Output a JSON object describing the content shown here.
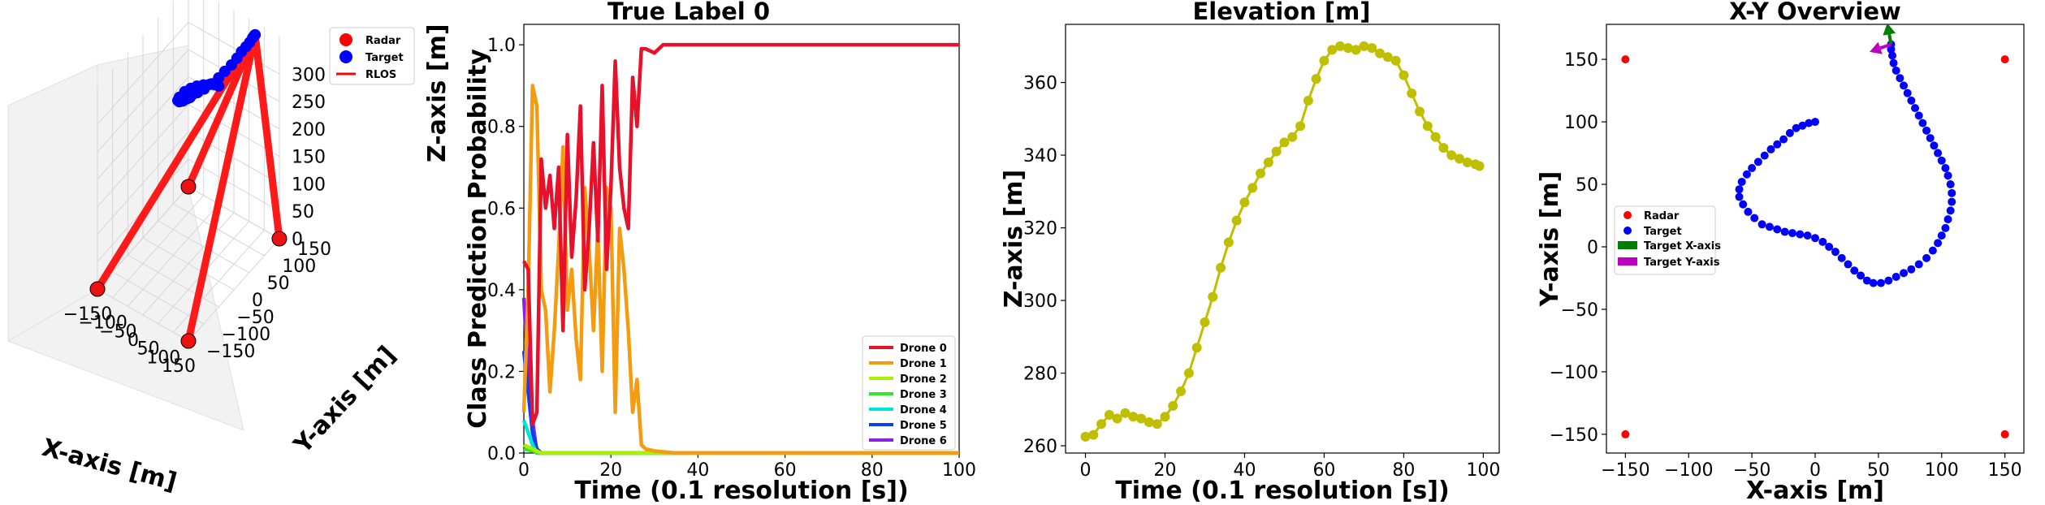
{
  "chart_data": [
    {
      "type": "scatter3d",
      "title": "",
      "xlabel": "X-axis [m]",
      "ylabel": "Y-axis [m]",
      "zlabel": "Z-axis [m]",
      "xlim": [
        -150,
        150
      ],
      "ylim": [
        -150,
        150
      ],
      "zlim": [
        0,
        370
      ],
      "xticks": [
        -150,
        -100,
        -50,
        0,
        50,
        100,
        150
      ],
      "yticks": [
        -150,
        -100,
        -50,
        0,
        50,
        100,
        150
      ],
      "zticks": [
        0,
        50,
        100,
        150,
        200,
        250,
        300
      ],
      "legend": [
        {
          "label": "Radar",
          "color": "#ff0000",
          "marker": "circle"
        },
        {
          "label": "Target",
          "color": "#0000ff",
          "marker": "circle"
        },
        {
          "label": "RLOS",
          "color": "#ff0000",
          "marker": "line"
        }
      ],
      "radars": [
        [
          -150,
          -150,
          0
        ],
        [
          150,
          -150,
          0
        ],
        [
          -150,
          150,
          0
        ],
        [
          150,
          150,
          0
        ]
      ],
      "los_target": [
        60,
        160,
        337
      ],
      "target_path": [
        [
          0,
          100,
          262
        ],
        [
          -10,
          97,
          263
        ],
        [
          -20,
          90,
          265
        ],
        [
          -30,
          80,
          267
        ],
        [
          -40,
          68,
          269
        ],
        [
          -50,
          58,
          268
        ],
        [
          -58,
          46,
          267
        ],
        [
          -60,
          30,
          266
        ],
        [
          -55,
          20,
          268
        ],
        [
          -45,
          15,
          272
        ],
        [
          -30,
          12,
          280
        ],
        [
          -15,
          10,
          290
        ],
        [
          0,
          5,
          300
        ],
        [
          10,
          -5,
          310
        ],
        [
          20,
          -15,
          320
        ],
        [
          30,
          -25,
          330
        ],
        [
          40,
          -28,
          338
        ],
        [
          55,
          -25,
          345
        ],
        [
          70,
          -18,
          352
        ],
        [
          85,
          -8,
          360
        ],
        [
          95,
          5,
          366
        ],
        [
          100,
          20,
          370
        ],
        [
          102,
          40,
          370
        ],
        [
          100,
          60,
          369
        ],
        [
          95,
          80,
          367
        ],
        [
          90,
          100,
          362
        ],
        [
          82,
          120,
          355
        ],
        [
          72,
          140,
          348
        ],
        [
          63,
          155,
          340
        ],
        [
          60,
          160,
          337
        ]
      ]
    },
    {
      "type": "line",
      "title": "True Label 0",
      "xlabel": "Time (0.1 resolution [s])",
      "ylabel": "Class Prediction Probability",
      "xlim": [
        0,
        100
      ],
      "ylim": [
        0,
        1.05
      ],
      "xticks": [
        0,
        20,
        40,
        60,
        80,
        100
      ],
      "yticks": [
        0.0,
        0.2,
        0.4,
        0.6,
        0.8,
        1.0
      ],
      "legend_position": "lower-right",
      "series": [
        {
          "name": "Drone 0",
          "color": "#e8112b",
          "x": [
            0,
            1,
            2,
            3,
            4,
            5,
            6,
            7,
            8,
            9,
            10,
            11,
            12,
            13,
            14,
            15,
            16,
            17,
            18,
            19,
            20,
            21,
            22,
            23,
            24,
            25,
            26,
            27,
            28,
            30,
            32,
            35,
            40,
            50,
            60,
            70,
            80,
            90,
            100
          ],
          "y": [
            0.47,
            0.45,
            0.07,
            0.1,
            0.72,
            0.6,
            0.68,
            0.55,
            0.7,
            0.3,
            0.78,
            0.48,
            0.62,
            0.85,
            0.4,
            0.55,
            0.76,
            0.52,
            0.9,
            0.45,
            0.65,
            0.96,
            0.7,
            0.6,
            0.55,
            0.92,
            0.8,
            0.99,
            0.99,
            0.98,
            1.0,
            1.0,
            1.0,
            1.0,
            1.0,
            1.0,
            1.0,
            1.0,
            1.0
          ]
        },
        {
          "name": "Drone 1",
          "color": "#f39c12",
          "x": [
            0,
            1,
            2,
            3,
            4,
            5,
            6,
            7,
            8,
            9,
            10,
            11,
            12,
            13,
            14,
            15,
            16,
            17,
            18,
            19,
            20,
            21,
            22,
            23,
            24,
            25,
            26,
            27,
            28,
            30,
            35,
            40,
            50,
            60,
            70,
            80,
            90,
            100
          ],
          "y": [
            0.1,
            0.4,
            0.9,
            0.85,
            0.4,
            0.35,
            0.15,
            0.3,
            0.5,
            0.75,
            0.35,
            0.45,
            0.28,
            0.18,
            0.65,
            0.5,
            0.3,
            0.55,
            0.2,
            0.65,
            0.6,
            0.1,
            0.55,
            0.45,
            0.3,
            0.1,
            0.18,
            0.02,
            0.01,
            0.005,
            0.0,
            0.0,
            0.0,
            0.0,
            0.0,
            0.0,
            0.0,
            0.0
          ]
        },
        {
          "name": "Drone 2",
          "color": "#aaf000",
          "x": [
            0,
            2,
            4,
            6,
            10,
            20,
            40,
            60,
            80,
            100
          ],
          "y": [
            0.02,
            0.01,
            0.0,
            0.0,
            0.0,
            0.0,
            0.0,
            0.0,
            0.0,
            0.0
          ]
        },
        {
          "name": "Drone 3",
          "color": "#2ee82e",
          "x": [
            0,
            2,
            4,
            6,
            10,
            20,
            40,
            60,
            80,
            100
          ],
          "y": [
            0.01,
            0.005,
            0.0,
            0.0,
            0.0,
            0.0,
            0.0,
            0.0,
            0.0,
            0.0
          ]
        },
        {
          "name": "Drone 4",
          "color": "#00e5d8",
          "x": [
            0,
            1,
            2,
            3,
            4,
            10,
            20,
            40,
            60,
            80,
            100
          ],
          "y": [
            0.08,
            0.05,
            0.02,
            0.0,
            0.0,
            0.0,
            0.0,
            0.0,
            0.0,
            0.0,
            0.0
          ]
        },
        {
          "name": "Drone 5",
          "color": "#0c3ff5",
          "x": [
            0,
            1,
            2,
            3,
            4,
            10,
            20,
            40,
            60,
            80,
            100
          ],
          "y": [
            0.25,
            0.15,
            0.05,
            0.01,
            0.0,
            0.0,
            0.0,
            0.0,
            0.0,
            0.0,
            0.0
          ]
        },
        {
          "name": "Drone 6",
          "color": "#8a1fe8",
          "x": [
            0,
            1,
            2,
            3,
            4,
            10,
            20,
            40,
            60,
            80,
            100
          ],
          "y": [
            0.38,
            0.2,
            0.08,
            0.0,
            0.0,
            0.0,
            0.0,
            0.0,
            0.0,
            0.0,
            0.0
          ]
        }
      ]
    },
    {
      "type": "line",
      "title": "Elevation [m]",
      "xlabel": "Time (0.1 resolution [s])",
      "ylabel": "Z-axis [m]",
      "xlim": [
        -5,
        104
      ],
      "ylim": [
        258,
        376
      ],
      "xticks": [
        0,
        20,
        40,
        60,
        80,
        100
      ],
      "yticks": [
        260,
        280,
        300,
        320,
        340,
        360
      ],
      "series": [
        {
          "name": "Elevation",
          "color": "#bfbf00",
          "x": [
            0,
            2,
            4,
            6,
            8,
            10,
            12,
            14,
            16,
            18,
            20,
            22,
            24,
            26,
            28,
            30,
            32,
            34,
            36,
            38,
            40,
            42,
            44,
            46,
            48,
            50,
            52,
            54,
            56,
            58,
            60,
            62,
            64,
            66,
            68,
            70,
            72,
            74,
            76,
            78,
            80,
            82,
            84,
            86,
            88,
            90,
            92,
            94,
            96,
            98,
            99
          ],
          "y": [
            262.5,
            263,
            266,
            268.5,
            267.5,
            269,
            268,
            267.5,
            266.5,
            266,
            268,
            271,
            275,
            280,
            287,
            294,
            301,
            309,
            316,
            322,
            327,
            331,
            335,
            338,
            341,
            343.5,
            345,
            348,
            355,
            361,
            366,
            369,
            370,
            369.5,
            369,
            370,
            369.5,
            368,
            367,
            366,
            362,
            357,
            352,
            348,
            345,
            342,
            340,
            339,
            338,
            337.5,
            337
          ]
        }
      ]
    },
    {
      "type": "scatter",
      "title": "X-Y Overview",
      "xlabel": "X-axis [m]",
      "ylabel": "Y-axis [m]",
      "xlim": [
        -165,
        165
      ],
      "ylim": [
        -165,
        178
      ],
      "xticks": [
        -150,
        -100,
        -50,
        0,
        50,
        100,
        150
      ],
      "yticks": [
        -150,
        -100,
        -50,
        0,
        50,
        100,
        150
      ],
      "legend_position": "center-left",
      "legend": [
        {
          "label": "Radar",
          "color": "#ff0000",
          "marker": "circle"
        },
        {
          "label": "Target",
          "color": "#0000ff",
          "marker": "circle"
        },
        {
          "label": "Target X-axis",
          "color": "#008000",
          "marker": "arrow"
        },
        {
          "label": "Target Y-axis",
          "color": "#bf00bf",
          "marker": "arrow"
        }
      ],
      "radars": [
        [
          -150,
          150
        ],
        [
          150,
          150
        ],
        [
          -150,
          -150
        ],
        [
          150,
          -150
        ]
      ],
      "target_path": [
        [
          0,
          100
        ],
        [
          -5,
          99
        ],
        [
          -10,
          97
        ],
        [
          -15,
          95
        ],
        [
          -20,
          91
        ],
        [
          -25,
          86
        ],
        [
          -30,
          82
        ],
        [
          -35,
          78
        ],
        [
          -40,
          73
        ],
        [
          -45,
          68
        ],
        [
          -50,
          63
        ],
        [
          -54,
          58
        ],
        [
          -58,
          52
        ],
        [
          -60,
          46
        ],
        [
          -60,
          40
        ],
        [
          -57,
          34
        ],
        [
          -53,
          28
        ],
        [
          -48,
          23
        ],
        [
          -42,
          18
        ],
        [
          -36,
          16
        ],
        [
          -30,
          14
        ],
        [
          -24,
          12
        ],
        [
          -18,
          11
        ],
        [
          -12,
          10
        ],
        [
          -6,
          9
        ],
        [
          0,
          7
        ],
        [
          6,
          4
        ],
        [
          11,
          0
        ],
        [
          16,
          -4
        ],
        [
          21,
          -9
        ],
        [
          26,
          -14
        ],
        [
          31,
          -19
        ],
        [
          36,
          -23
        ],
        [
          41,
          -27
        ],
        [
          46,
          -29
        ],
        [
          52,
          -29
        ],
        [
          58,
          -27
        ],
        [
          64,
          -24
        ],
        [
          70,
          -21
        ],
        [
          76,
          -18
        ],
        [
          82,
          -14
        ],
        [
          88,
          -9
        ],
        [
          93,
          -3
        ],
        [
          97,
          3
        ],
        [
          100,
          9
        ],
        [
          103,
          15
        ],
        [
          105,
          22
        ],
        [
          107,
          29
        ],
        [
          108,
          36
        ],
        [
          108,
          43
        ],
        [
          107,
          50
        ],
        [
          105,
          57
        ],
        [
          103,
          63
        ],
        [
          100,
          69
        ],
        [
          97,
          75
        ],
        [
          94,
          81
        ],
        [
          91,
          87
        ],
        [
          88,
          93
        ],
        [
          85,
          99
        ],
        [
          82,
          105
        ],
        [
          79,
          111
        ],
        [
          76,
          117
        ],
        [
          73,
          123
        ],
        [
          70,
          129
        ],
        [
          67,
          135
        ],
        [
          64,
          141
        ],
        [
          62,
          147
        ],
        [
          61,
          153
        ],
        [
          60,
          158
        ],
        [
          60,
          162
        ]
      ],
      "target_x_axis": {
        "origin": [
          60,
          162
        ],
        "vector": [
          -3,
          17
        ]
      },
      "target_y_axis": {
        "origin": [
          60,
          162
        ],
        "vector": [
          -17,
          -6
        ]
      }
    }
  ]
}
